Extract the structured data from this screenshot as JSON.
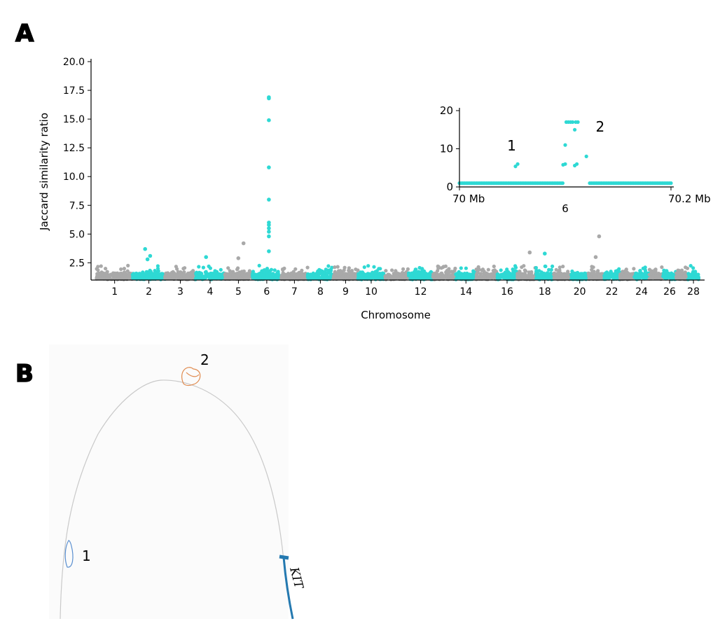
{
  "panel_labels": {
    "a": "A",
    "b": "B"
  },
  "colors": {
    "cyan": "#2ed9d4",
    "gray": "#a9a9a9",
    "blue_track": "#2479b0",
    "orange_loop": "#e08a4e",
    "blue_loop": "#5a8fd0"
  },
  "chart_data": [
    {
      "type": "scatter",
      "subtype": "manhattan",
      "xlabel": "Chromosome",
      "ylabel": "Jaccard similarity ratio",
      "ylim": [
        1.0,
        20.0
      ],
      "y_ticks": [
        "2.5",
        "5.0",
        "7.5",
        "10.0",
        "12.5",
        "15.0",
        "17.5",
        "20.0"
      ],
      "x_tick_labels": [
        "1",
        "2",
        "3",
        "4",
        "5",
        "6",
        "7",
        "8",
        "9",
        "10",
        "12",
        "14",
        "16",
        "18",
        "20",
        "22",
        "24",
        "26",
        "28"
      ],
      "chromosomes": [
        {
          "chr": 1,
          "color": "gray"
        },
        {
          "chr": 2,
          "color": "cyan"
        },
        {
          "chr": 3,
          "color": "gray"
        },
        {
          "chr": 4,
          "color": "cyan"
        },
        {
          "chr": 5,
          "color": "gray"
        },
        {
          "chr": 6,
          "color": "cyan"
        },
        {
          "chr": 7,
          "color": "gray"
        },
        {
          "chr": 8,
          "color": "cyan"
        },
        {
          "chr": 9,
          "color": "gray"
        },
        {
          "chr": 10,
          "color": "cyan"
        },
        {
          "chr": 11,
          "color": "gray"
        },
        {
          "chr": 12,
          "color": "cyan"
        },
        {
          "chr": 13,
          "color": "gray"
        },
        {
          "chr": 14,
          "color": "cyan"
        },
        {
          "chr": 15,
          "color": "gray"
        },
        {
          "chr": 16,
          "color": "cyan"
        },
        {
          "chr": 17,
          "color": "gray"
        },
        {
          "chr": 18,
          "color": "cyan"
        },
        {
          "chr": 19,
          "color": "gray"
        },
        {
          "chr": 20,
          "color": "cyan"
        },
        {
          "chr": 21,
          "color": "gray"
        },
        {
          "chr": 22,
          "color": "cyan"
        },
        {
          "chr": 23,
          "color": "gray"
        },
        {
          "chr": 24,
          "color": "cyan"
        },
        {
          "chr": 25,
          "color": "gray"
        },
        {
          "chr": 26,
          "color": "cyan"
        },
        {
          "chr": 27,
          "color": "gray"
        },
        {
          "chr": 28,
          "color": "cyan"
        }
      ],
      "highlight_points": [
        {
          "chr": 6,
          "y": 16.9
        },
        {
          "chr": 6,
          "y": 16.8
        },
        {
          "chr": 6,
          "y": 14.9
        },
        {
          "chr": 6,
          "y": 10.8
        },
        {
          "chr": 6,
          "y": 8.0
        },
        {
          "chr": 6,
          "y": 6.0
        },
        {
          "chr": 6,
          "y": 5.8
        },
        {
          "chr": 6,
          "y": 5.5
        },
        {
          "chr": 6,
          "y": 5.2
        },
        {
          "chr": 6,
          "y": 4.8
        },
        {
          "chr": 6,
          "y": 3.5
        },
        {
          "chr": 2,
          "y": 3.7
        },
        {
          "chr": 2,
          "y": 3.1
        },
        {
          "chr": 2,
          "y": 2.8
        },
        {
          "chr": 4,
          "y": 3.0
        },
        {
          "chr": 5,
          "y": 4.2
        },
        {
          "chr": 5,
          "y": 2.9
        },
        {
          "chr": 17,
          "y": 3.4
        },
        {
          "chr": 18,
          "y": 3.3
        },
        {
          "chr": 21,
          "y": 4.8
        },
        {
          "chr": 21,
          "y": 3.0
        }
      ]
    },
    {
      "type": "scatter",
      "subtype": "inset",
      "x_tick_labels": [
        "70 Mb",
        "70.2 Mb"
      ],
      "xlabel": "6",
      "xlim": [
        70.0,
        70.2
      ],
      "ylim": [
        0,
        20
      ],
      "y_ticks": [
        "0",
        "10",
        "20"
      ],
      "annotations": [
        "1",
        "2"
      ],
      "points": [
        {
          "x": 70.053,
          "y": 5.4
        },
        {
          "x": 70.055,
          "y": 6.0
        },
        {
          "x": 70.098,
          "y": 5.8
        },
        {
          "x": 70.1,
          "y": 11.0
        },
        {
          "x": 70.1,
          "y": 6.0
        },
        {
          "x": 70.101,
          "y": 17.0
        },
        {
          "x": 70.103,
          "y": 17.0
        },
        {
          "x": 70.105,
          "y": 17.0
        },
        {
          "x": 70.107,
          "y": 17.0
        },
        {
          "x": 70.109,
          "y": 15.0
        },
        {
          "x": 70.11,
          "y": 17.0
        },
        {
          "x": 70.112,
          "y": 17.0
        },
        {
          "x": 70.109,
          "y": 5.6
        },
        {
          "x": 70.111,
          "y": 6.0
        },
        {
          "x": 70.12,
          "y": 8.0
        }
      ]
    }
  ],
  "panel_b": {
    "callouts": [
      "2",
      "1"
    ],
    "gene_label": "KIT"
  }
}
